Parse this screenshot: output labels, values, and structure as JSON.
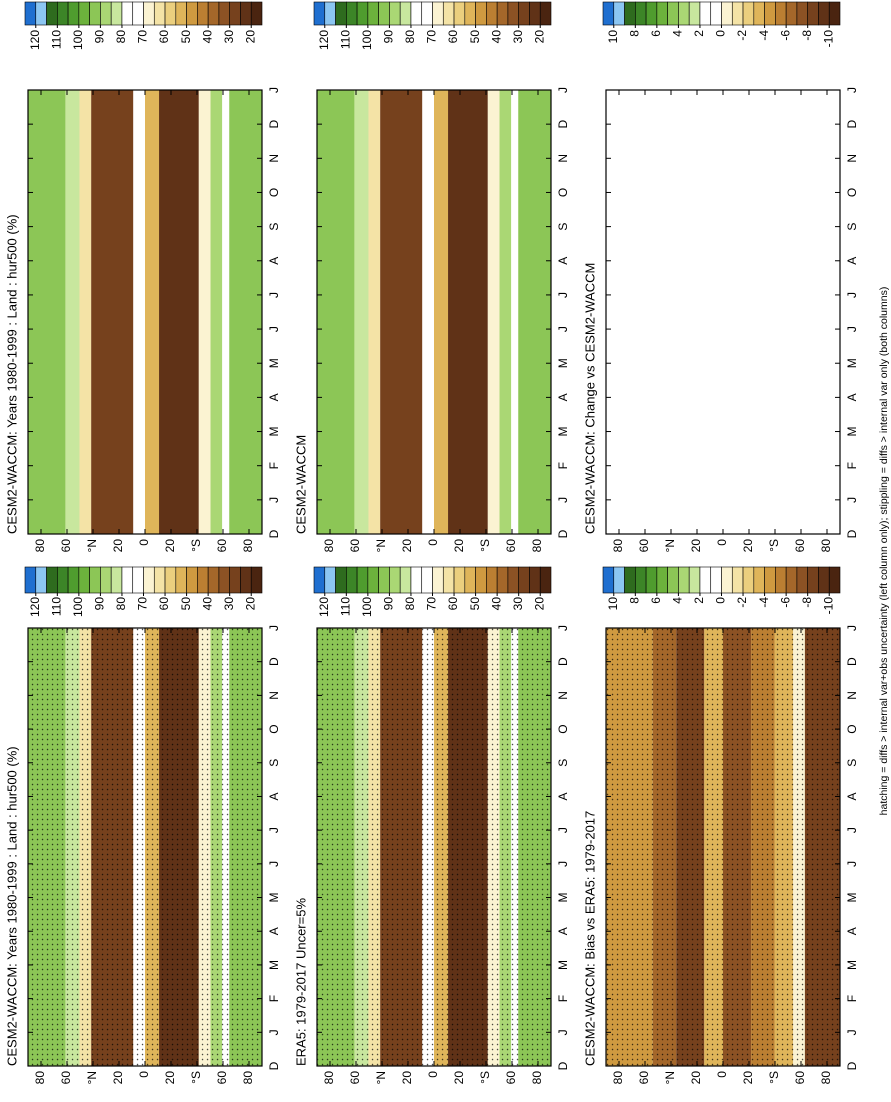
{
  "caption": "hatching = diffs > internal var+obs uncertainty (left column only); stippling = diffs > internal var only (both columns)",
  "chart_data": [
    {
      "type": "contour",
      "title": "CESM2-WACCM: Years 1980-1999 : Land : hur500 (%)",
      "field": "climate",
      "stippling": true,
      "categories": [
        "D",
        "J",
        "F",
        "M",
        "A",
        "M",
        "J",
        "J",
        "A",
        "S",
        "O",
        "N",
        "D",
        "J"
      ],
      "ylim": [
        -90,
        90
      ],
      "yticks": [
        {
          "value": 80,
          "label": "80"
        },
        {
          "value": 60,
          "label": "60"
        },
        {
          "value": 40,
          "label": "°N"
        },
        {
          "value": 20,
          "label": "20"
        },
        0,
        {
          "value": -20,
          "label": "20"
        },
        {
          "value": -40,
          "label": "°S"
        },
        {
          "value": -60,
          "label": "60"
        },
        {
          "value": -80,
          "label": "80"
        }
      ],
      "colorbar": {
        "ticks": [
          120,
          110,
          100,
          90,
          80,
          70,
          60,
          50,
          40,
          30,
          20
        ],
        "colors": [
          "#1f6fd0",
          "#8cc6f2",
          "#2e6b1e",
          "#3c8527",
          "#4f9c2e",
          "#6cb23c",
          "#8cc656",
          "#aad774",
          "#c8e79e",
          "#ffffff",
          "#ffffff",
          "#fbf3d2",
          "#f4e3a6",
          "#ebcf7e",
          "#dfb55a",
          "#cf9a40",
          "#bb7f32",
          "#a4672a",
          "#8c5224",
          "#76411d",
          "#603217",
          "#4a2410"
        ]
      }
    },
    {
      "type": "contour",
      "title": "CESM2-WACCM: Years 1980-1999 : Land : hur500 (%)",
      "field": "climate",
      "stippling": false,
      "categories": [
        "D",
        "J",
        "F",
        "M",
        "A",
        "M",
        "J",
        "J",
        "A",
        "S",
        "O",
        "N",
        "D",
        "J"
      ],
      "ylim": [
        -90,
        90
      ],
      "yticks": [
        {
          "value": 80,
          "label": "80"
        },
        {
          "value": 60,
          "label": "60"
        },
        {
          "value": 40,
          "label": "°N"
        },
        {
          "value": 20,
          "label": "20"
        },
        0,
        {
          "value": -20,
          "label": "20"
        },
        {
          "value": -40,
          "label": "°S"
        },
        {
          "value": -60,
          "label": "60"
        },
        {
          "value": -80,
          "label": "80"
        }
      ],
      "colorbar": {
        "ticks": [
          120,
          110,
          100,
          90,
          80,
          70,
          60,
          50,
          40,
          30,
          20
        ],
        "colors": [
          "#1f6fd0",
          "#8cc6f2",
          "#2e6b1e",
          "#3c8527",
          "#4f9c2e",
          "#6cb23c",
          "#8cc656",
          "#aad774",
          "#c8e79e",
          "#ffffff",
          "#ffffff",
          "#fbf3d2",
          "#f4e3a6",
          "#ebcf7e",
          "#dfb55a",
          "#cf9a40",
          "#bb7f32",
          "#a4672a",
          "#8c5224",
          "#76411d",
          "#603217",
          "#4a2410"
        ]
      }
    },
    {
      "type": "contour",
      "title": "ERA5: 1979-2017 Uncer=5%",
      "field": "climate",
      "stippling": true,
      "categories": [
        "D",
        "J",
        "F",
        "M",
        "A",
        "M",
        "J",
        "J",
        "A",
        "S",
        "O",
        "N",
        "D",
        "J"
      ],
      "ylim": [
        -90,
        90
      ],
      "yticks": [
        {
          "value": 80,
          "label": "80"
        },
        {
          "value": 60,
          "label": "60"
        },
        {
          "value": 40,
          "label": "°N"
        },
        {
          "value": 20,
          "label": "20"
        },
        0,
        {
          "value": -20,
          "label": "20"
        },
        {
          "value": -40,
          "label": "°S"
        },
        {
          "value": -60,
          "label": "60"
        },
        {
          "value": -80,
          "label": "80"
        }
      ],
      "colorbar": {
        "ticks": [
          120,
          110,
          100,
          90,
          80,
          70,
          60,
          50,
          40,
          30,
          20
        ],
        "colors": [
          "#1f6fd0",
          "#8cc6f2",
          "#2e6b1e",
          "#3c8527",
          "#4f9c2e",
          "#6cb23c",
          "#8cc656",
          "#aad774",
          "#c8e79e",
          "#ffffff",
          "#ffffff",
          "#fbf3d2",
          "#f4e3a6",
          "#ebcf7e",
          "#dfb55a",
          "#cf9a40",
          "#bb7f32",
          "#a4672a",
          "#8c5224",
          "#76411d",
          "#603217",
          "#4a2410"
        ]
      }
    },
    {
      "type": "contour",
      "title": "CESM2-WACCM",
      "field": "climate",
      "stippling": false,
      "categories": [
        "D",
        "J",
        "F",
        "M",
        "A",
        "M",
        "J",
        "J",
        "A",
        "S",
        "O",
        "N",
        "D",
        "J"
      ],
      "ylim": [
        -90,
        90
      ],
      "yticks": [
        {
          "value": 80,
          "label": "80"
        },
        {
          "value": 60,
          "label": "60"
        },
        {
          "value": 40,
          "label": "°N"
        },
        {
          "value": 20,
          "label": "20"
        },
        0,
        {
          "value": -20,
          "label": "20"
        },
        {
          "value": -40,
          "label": "°S"
        },
        {
          "value": -60,
          "label": "60"
        },
        {
          "value": -80,
          "label": "80"
        }
      ],
      "colorbar": {
        "ticks": [
          120,
          110,
          100,
          90,
          80,
          70,
          60,
          50,
          40,
          30,
          20
        ],
        "colors": [
          "#1f6fd0",
          "#8cc6f2",
          "#2e6b1e",
          "#3c8527",
          "#4f9c2e",
          "#6cb23c",
          "#8cc656",
          "#aad774",
          "#c8e79e",
          "#ffffff",
          "#ffffff",
          "#fbf3d2",
          "#f4e3a6",
          "#ebcf7e",
          "#dfb55a",
          "#cf9a40",
          "#bb7f32",
          "#a4672a",
          "#8c5224",
          "#76411d",
          "#603217",
          "#4a2410"
        ]
      }
    },
    {
      "type": "contour",
      "title": "CESM2-WACCM: Bias vs ERA5: 1979-2017",
      "field": "bias",
      "stippling": true,
      "categories": [
        "D",
        "J",
        "F",
        "M",
        "A",
        "M",
        "J",
        "J",
        "A",
        "S",
        "O",
        "N",
        "D",
        "J"
      ],
      "ylim": [
        -90,
        90
      ],
      "yticks": [
        {
          "value": 80,
          "label": "80"
        },
        {
          "value": 60,
          "label": "60"
        },
        {
          "value": 40,
          "label": "°N"
        },
        {
          "value": 20,
          "label": "20"
        },
        0,
        {
          "value": -20,
          "label": "20"
        },
        {
          "value": -40,
          "label": "°S"
        },
        {
          "value": -60,
          "label": "60"
        },
        {
          "value": -80,
          "label": "80"
        }
      ],
      "colorbar": {
        "ticks": [
          10,
          8,
          6,
          4,
          2,
          0,
          -2,
          -4,
          -6,
          -8,
          -10
        ],
        "colors": [
          "#1f6fd0",
          "#8cc6f2",
          "#2e6b1e",
          "#3c8527",
          "#4f9c2e",
          "#6cb23c",
          "#8cc656",
          "#aad774",
          "#c8e79e",
          "#ffffff",
          "#ffffff",
          "#fbf3d2",
          "#f4e3a6",
          "#ebcf7e",
          "#dfb55a",
          "#cf9a40",
          "#bb7f32",
          "#a4672a",
          "#8c5224",
          "#76411d",
          "#603217",
          "#4a2410"
        ]
      }
    },
    {
      "type": "contour",
      "title": "CESM2-WACCM: Change vs CESM2-WACCM",
      "field": "empty",
      "stippling": false,
      "categories": [
        "D",
        "J",
        "F",
        "M",
        "A",
        "M",
        "J",
        "J",
        "A",
        "S",
        "O",
        "N",
        "D",
        "J"
      ],
      "ylim": [
        -90,
        90
      ],
      "yticks": [
        {
          "value": 80,
          "label": "80"
        },
        {
          "value": 60,
          "label": "60"
        },
        {
          "value": 40,
          "label": "°N"
        },
        {
          "value": 20,
          "label": "20"
        },
        0,
        {
          "value": -20,
          "label": "20"
        },
        {
          "value": -40,
          "label": "°S"
        },
        {
          "value": -60,
          "label": "60"
        },
        {
          "value": -80,
          "label": "80"
        }
      ],
      "colorbar": {
        "ticks": [
          10,
          8,
          6,
          4,
          2,
          0,
          -2,
          -4,
          -6,
          -8,
          -10
        ],
        "colors": [
          "#1f6fd0",
          "#8cc6f2",
          "#2e6b1e",
          "#3c8527",
          "#4f9c2e",
          "#6cb23c",
          "#8cc656",
          "#aad774",
          "#c8e79e",
          "#ffffff",
          "#ffffff",
          "#fbf3d2",
          "#f4e3a6",
          "#ebcf7e",
          "#dfb55a",
          "#cf9a40",
          "#bb7f32",
          "#a4672a",
          "#8c5224",
          "#76411d",
          "#603217",
          "#4a2410"
        ]
      }
    }
  ]
}
